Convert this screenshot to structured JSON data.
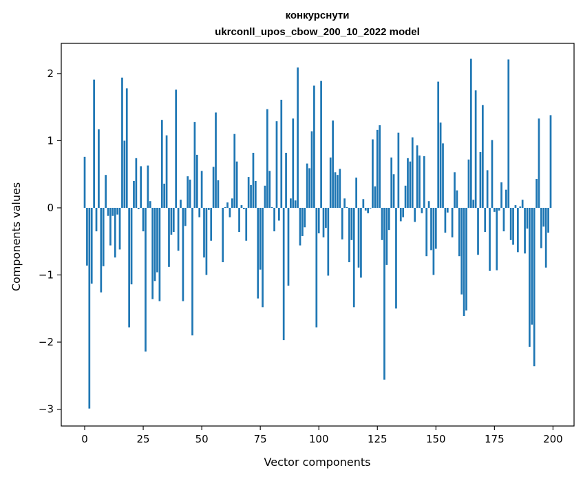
{
  "chart_data": {
    "type": "bar",
    "title_lines": [
      "конкурснути",
      "ukrconll_upos_cbow_200_10_2022 model"
    ],
    "xlabel": "Vector components",
    "ylabel": "Components values",
    "xlim": [
      -10,
      209
    ],
    "ylim": [
      -3.25,
      2.45
    ],
    "xticks": [
      0,
      25,
      50,
      75,
      100,
      125,
      150,
      175,
      200
    ],
    "yticks": [
      -3,
      -2,
      -1,
      0,
      1,
      2
    ],
    "ytick_labels": [
      "−3",
      "−2",
      "−1",
      "0",
      "1",
      "2"
    ],
    "bar_color": "#1f77b4",
    "grid": false,
    "x": [
      0,
      1,
      2,
      3,
      4,
      5,
      6,
      7,
      8,
      9,
      10,
      11,
      12,
      13,
      14,
      15,
      16,
      17,
      18,
      19,
      20,
      21,
      22,
      23,
      24,
      25,
      26,
      27,
      28,
      29,
      30,
      31,
      32,
      33,
      34,
      35,
      36,
      37,
      38,
      39,
      40,
      41,
      42,
      43,
      44,
      45,
      46,
      47,
      48,
      49,
      50,
      51,
      52,
      53,
      54,
      55,
      56,
      57,
      58,
      59,
      60,
      61,
      62,
      63,
      64,
      65,
      66,
      67,
      68,
      69,
      70,
      71,
      72,
      73,
      74,
      75,
      76,
      77,
      78,
      79,
      80,
      81,
      82,
      83,
      84,
      85,
      86,
      87,
      88,
      89,
      90,
      91,
      92,
      93,
      94,
      95,
      96,
      97,
      98,
      99,
      100,
      101,
      102,
      103,
      104,
      105,
      106,
      107,
      108,
      109,
      110,
      111,
      112,
      113,
      114,
      115,
      116,
      117,
      118,
      119,
      120,
      121,
      122,
      123,
      124,
      125,
      126,
      127,
      128,
      129,
      130,
      131,
      132,
      133,
      134,
      135,
      136,
      137,
      138,
      139,
      140,
      141,
      142,
      143,
      144,
      145,
      146,
      147,
      148,
      149,
      150,
      151,
      152,
      153,
      154,
      155,
      156,
      157,
      158,
      159,
      160,
      161,
      162,
      163,
      164,
      165,
      166,
      167,
      168,
      169,
      170,
      171,
      172,
      173,
      174,
      175,
      176,
      177,
      178,
      179,
      180,
      181,
      182,
      183,
      184,
      185,
      186,
      187,
      188,
      189,
      190,
      191,
      192,
      193,
      194,
      195,
      196,
      197,
      198,
      199
    ],
    "values": [
      0.76,
      -0.86,
      -2.99,
      -1.13,
      1.91,
      -0.35,
      1.17,
      -1.26,
      -0.87,
      0.49,
      -0.12,
      -0.56,
      -0.12,
      -0.74,
      -0.1,
      -0.62,
      1.94,
      1.0,
      1.78,
      -1.78,
      -1.14,
      0.4,
      0.74,
      -0.02,
      0.62,
      -0.35,
      -2.14,
      0.63,
      0.1,
      -1.36,
      -1.09,
      -0.96,
      -1.39,
      1.31,
      0.36,
      1.08,
      -0.88,
      -0.4,
      -0.36,
      1.76,
      -0.64,
      0.12,
      -1.39,
      -0.27,
      0.47,
      0.42,
      -1.9,
      1.28,
      0.79,
      -0.14,
      0.55,
      -0.74,
      -1.0,
      -0.03,
      -0.49,
      0.61,
      1.42,
      0.41,
      0.0,
      -0.81,
      0.01,
      0.08,
      -0.14,
      0.14,
      1.1,
      0.69,
      -0.36,
      0.04,
      -0.02,
      -0.49,
      0.46,
      0.34,
      0.82,
      0.4,
      -1.35,
      -0.92,
      -1.48,
      0.33,
      1.47,
      0.55,
      0.01,
      -0.35,
      1.29,
      -0.19,
      1.61,
      -1.97,
      0.82,
      -1.16,
      0.14,
      1.33,
      0.11,
      2.09,
      -0.56,
      -0.42,
      -0.29,
      0.66,
      0.59,
      1.14,
      1.82,
      -1.78,
      -0.38,
      1.89,
      -0.44,
      -0.3,
      -1.01,
      0.75,
      1.3,
      0.53,
      0.49,
      0.58,
      -0.47,
      0.14,
      0.01,
      -0.81,
      -0.48,
      -1.48,
      0.45,
      -0.89,
      -1.04,
      0.13,
      -0.04,
      -0.08,
      -0.01,
      1.02,
      0.32,
      1.16,
      1.23,
      -0.48,
      -2.56,
      -0.85,
      -0.33,
      0.75,
      0.5,
      -1.5,
      1.12,
      -0.2,
      -0.14,
      0.33,
      0.74,
      0.69,
      1.05,
      -0.21,
      0.93,
      0.78,
      -0.08,
      0.77,
      -0.72,
      0.1,
      -0.63,
      -1.0,
      -0.61,
      1.88,
      1.27,
      0.96,
      -0.37,
      -0.07,
      0.0,
      -0.44,
      0.53,
      0.26,
      -0.72,
      -1.29,
      -1.61,
      -1.53,
      0.72,
      2.22,
      0.12,
      1.75,
      -0.7,
      0.83,
      1.53,
      -0.36,
      0.56,
      -0.94,
      1.01,
      -0.06,
      -0.93,
      -0.04,
      0.38,
      -0.35,
      0.27,
      2.21,
      -0.48,
      -0.55,
      0.04,
      -0.66,
      0.02,
      0.12,
      -0.68,
      -0.31,
      -2.07,
      -1.74,
      -2.36,
      0.43,
      1.33,
      -0.6,
      -0.28,
      -0.89,
      -0.37,
      1.38
    ]
  }
}
